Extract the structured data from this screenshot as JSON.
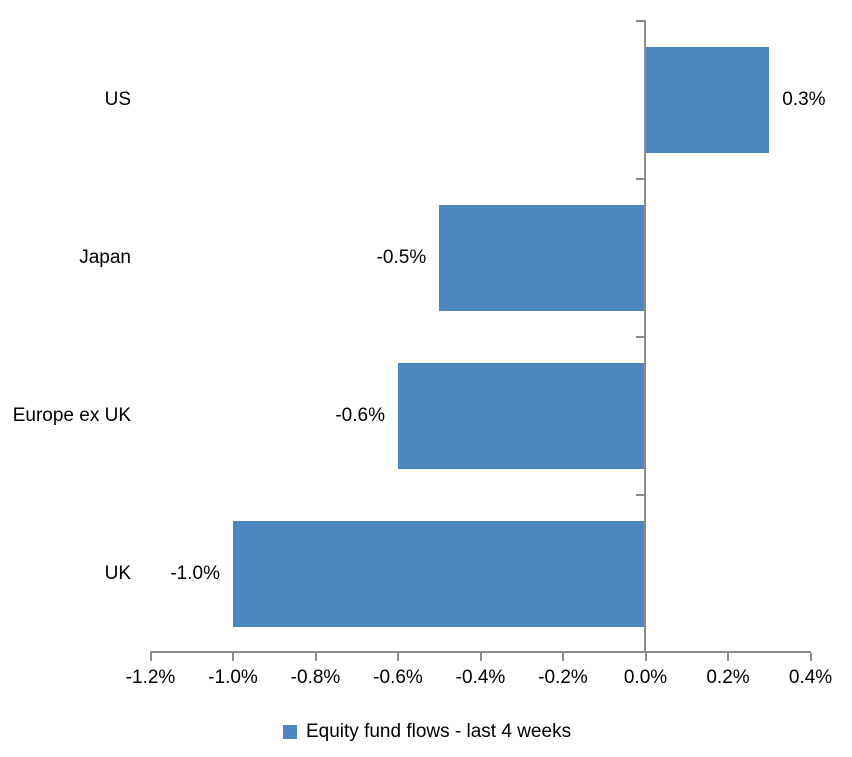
{
  "chart_data": {
    "type": "bar",
    "orientation": "horizontal",
    "title": "",
    "xlabel": "",
    "ylabel": "",
    "categories": [
      "US",
      "Japan",
      "Europe ex UK",
      "UK"
    ],
    "series": [
      {
        "name": "Equity fund flows - last 4 weeks",
        "values": [
          0.3,
          -0.5,
          -0.6,
          -1.0
        ],
        "value_labels": [
          "0.3%",
          "-0.5%",
          "-0.6%",
          "-1.0%"
        ]
      }
    ],
    "xlim": [
      -1.2,
      0.4
    ],
    "x_ticks": [
      {
        "v": -1.2,
        "label": "-1.2%"
      },
      {
        "v": -1.0,
        "label": "-1.0%"
      },
      {
        "v": -0.8,
        "label": "-0.8%"
      },
      {
        "v": -0.6,
        "label": "-0.6%"
      },
      {
        "v": -0.4,
        "label": "-0.4%"
      },
      {
        "v": -0.2,
        "label": "-0.2%"
      },
      {
        "v": 0.0,
        "label": "0.0%"
      },
      {
        "v": 0.2,
        "label": "0.2%"
      },
      {
        "v": 0.4,
        "label": "0.4%"
      }
    ],
    "grid": false,
    "legend_position": "bottom"
  },
  "colors": {
    "bar": "#4E87BE",
    "axis": "#8C8C8C",
    "text": "#000000",
    "background": "#FFFFFF"
  }
}
